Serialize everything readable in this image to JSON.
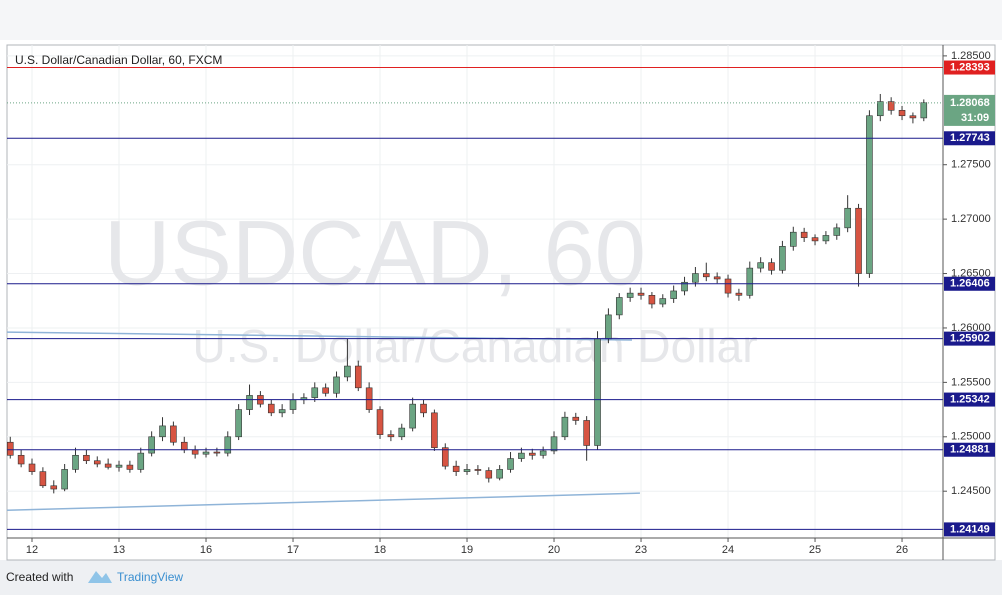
{
  "chart_data": {
    "type": "candlestick",
    "title": "U.S. Dollar/Canadian Dollar, 60, FXCM",
    "watermark": "USDCAD, 60",
    "watermark_subtitle": "U.S. Dollar/Canadian Dollar",
    "footer": {
      "created": "Created with",
      "brand": "TradingView"
    },
    "xlim": [
      -6.9,
      251.3
    ],
    "ylim": [
      1.2407,
      1.286
    ],
    "xticks": [
      {
        "value": 0,
        "label": "12"
      },
      {
        "value": 24,
        "label": "13"
      },
      {
        "value": 48,
        "label": "16"
      },
      {
        "value": 72,
        "label": "17"
      },
      {
        "value": 96,
        "label": "18"
      },
      {
        "value": 120,
        "label": "19"
      },
      {
        "value": 144,
        "label": "20"
      },
      {
        "value": 168,
        "label": "23"
      },
      {
        "value": 192,
        "label": "24"
      },
      {
        "value": 216,
        "label": "25"
      },
      {
        "value": 240,
        "label": "26"
      }
    ],
    "yticks": [
      {
        "value": 1.245,
        "label": "1.24500"
      },
      {
        "value": 1.25,
        "label": "1.25000"
      },
      {
        "value": 1.255,
        "label": "1.25500"
      },
      {
        "value": 1.26,
        "label": "1.26000"
      },
      {
        "value": 1.265,
        "label": "1.26500"
      },
      {
        "value": 1.27,
        "label": "1.27000"
      },
      {
        "value": 1.275,
        "label": "1.27500"
      },
      {
        "value": 1.285,
        "label": "1.28500"
      }
    ],
    "grid": true,
    "up_color": "#6ba583",
    "down_color": "#d75442",
    "x": [
      -6,
      -3,
      0,
      3,
      6,
      9,
      12,
      15,
      18,
      21,
      24,
      27,
      30,
      33,
      36,
      39,
      42,
      45,
      48,
      51,
      54,
      57,
      60,
      63,
      66,
      69,
      72,
      75,
      78,
      81,
      84,
      87,
      90,
      93,
      96,
      99,
      102,
      105,
      108,
      111,
      114,
      117,
      120,
      123,
      126,
      129,
      132,
      135,
      138,
      141,
      144,
      147,
      150,
      153,
      156,
      159,
      162,
      165,
      168,
      171,
      174,
      177,
      180,
      183,
      186,
      189,
      192,
      195,
      198,
      201,
      204,
      207,
      210,
      213,
      216,
      219,
      222,
      225,
      228,
      231,
      234,
      237,
      240,
      243,
      246
    ],
    "open": [
      1.2495,
      1.2483,
      1.2475,
      1.2468,
      1.2455,
      1.2452,
      1.247,
      1.2483,
      1.2478,
      1.2475,
      1.2472,
      1.2474,
      1.247,
      1.2485,
      1.25,
      1.251,
      1.2495,
      1.2488,
      1.2484,
      1.2486,
      1.2485,
      1.25,
      1.2525,
      1.2538,
      1.253,
      1.2522,
      1.2525,
      1.2534,
      1.2536,
      1.2545,
      1.254,
      1.2555,
      1.2565,
      1.2545,
      1.2525,
      1.2502,
      1.25,
      1.2508,
      1.253,
      1.2522,
      1.249,
      1.2473,
      1.2468,
      1.247,
      1.2469,
      1.2462,
      1.247,
      1.248,
      1.2485,
      1.2483,
      1.2487,
      1.25,
      1.2518,
      1.2515,
      1.2492,
      1.259,
      1.2612,
      1.2628,
      1.2632,
      1.263,
      1.2622,
      1.2627,
      1.2634,
      1.2642,
      1.265,
      1.2647,
      1.2645,
      1.2632,
      1.263,
      1.2655,
      1.266,
      1.2653,
      1.2675,
      1.2688,
      1.2683,
      1.268,
      1.2685,
      1.2692,
      1.271,
      1.265,
      1.2795,
      1.2808,
      1.28,
      1.2795,
      1.2793
    ],
    "high": [
      1.25,
      1.2488,
      1.248,
      1.2472,
      1.246,
      1.2475,
      1.249,
      1.2488,
      1.2482,
      1.248,
      1.2478,
      1.2478,
      1.249,
      1.2505,
      1.2518,
      1.2514,
      1.25,
      1.2492,
      1.249,
      1.249,
      1.2505,
      1.253,
      1.2548,
      1.2542,
      1.2534,
      1.253,
      1.254,
      1.254,
      1.255,
      1.2549,
      1.256,
      1.259,
      1.257,
      1.255,
      1.2528,
      1.2506,
      1.2512,
      1.2536,
      1.2534,
      1.2525,
      1.2494,
      1.2478,
      1.2475,
      1.2474,
      1.2472,
      1.2474,
      1.2486,
      1.249,
      1.2489,
      1.2491,
      1.2505,
      1.2523,
      1.2522,
      1.2519,
      1.2597,
      1.2618,
      1.2632,
      1.2637,
      1.2637,
      1.2633,
      1.2631,
      1.2639,
      1.2647,
      1.2656,
      1.266,
      1.2651,
      1.2649,
      1.2636,
      1.2661,
      1.2665,
      1.2664,
      1.268,
      1.2693,
      1.2692,
      1.2686,
      1.2689,
      1.2696,
      1.2722,
      1.2714,
      1.28,
      1.2815,
      1.2812,
      1.2804,
      1.2798,
      1.281
    ],
    "low": [
      1.248,
      1.2472,
      1.2465,
      1.2453,
      1.2448,
      1.245,
      1.2467,
      1.2475,
      1.2472,
      1.247,
      1.2468,
      1.2467,
      1.2467,
      1.2482,
      1.2496,
      1.2492,
      1.2485,
      1.248,
      1.2481,
      1.2482,
      1.2482,
      1.2497,
      1.252,
      1.2527,
      1.2519,
      1.2518,
      1.2521,
      1.253,
      1.2532,
      1.2537,
      1.2536,
      1.2551,
      1.2542,
      1.2522,
      1.2498,
      1.2496,
      1.2497,
      1.2505,
      1.2518,
      1.2487,
      1.247,
      1.2464,
      1.2465,
      1.2465,
      1.2458,
      1.246,
      1.2467,
      1.2477,
      1.2479,
      1.248,
      1.2484,
      1.2497,
      1.2511,
      1.2478,
      1.2488,
      1.2586,
      1.2608,
      1.2624,
      1.2626,
      1.2618,
      1.2619,
      1.2623,
      1.263,
      1.2638,
      1.2643,
      1.2641,
      1.2628,
      1.2625,
      1.2627,
      1.2651,
      1.2649,
      1.265,
      1.2671,
      1.2679,
      1.2676,
      1.2677,
      1.2681,
      1.2688,
      1.2638,
      1.2646,
      1.279,
      1.2796,
      1.2791,
      1.2788,
      1.279
    ],
    "close": [
      1.2483,
      1.2475,
      1.2468,
      1.2455,
      1.2452,
      1.247,
      1.2483,
      1.2478,
      1.2475,
      1.2472,
      1.2474,
      1.247,
      1.2485,
      1.25,
      1.251,
      1.2495,
      1.2488,
      1.2484,
      1.2486,
      1.2485,
      1.25,
      1.2525,
      1.2538,
      1.253,
      1.2522,
      1.2525,
      1.2534,
      1.2536,
      1.2545,
      1.254,
      1.2555,
      1.2565,
      1.2545,
      1.2525,
      1.2502,
      1.25,
      1.2508,
      1.253,
      1.2522,
      1.249,
      1.2473,
      1.2468,
      1.247,
      1.2469,
      1.2462,
      1.247,
      1.248,
      1.2485,
      1.2483,
      1.2487,
      1.25,
      1.2518,
      1.2515,
      1.2492,
      1.259,
      1.2612,
      1.2628,
      1.2632,
      1.263,
      1.2622,
      1.2627,
      1.2634,
      1.2642,
      1.265,
      1.2647,
      1.2645,
      1.2632,
      1.263,
      1.2655,
      1.266,
      1.2653,
      1.2675,
      1.2688,
      1.2683,
      1.268,
      1.2685,
      1.2692,
      1.271,
      1.265,
      1.2795,
      1.2808,
      1.28,
      1.2795,
      1.2793,
      1.2807
    ],
    "levels": [
      {
        "value": 1.28393,
        "color": "#e02020"
      },
      {
        "value": 1.27743,
        "color": "#1a1a8c"
      },
      {
        "value": 1.26406,
        "color": "#1a1a8c"
      },
      {
        "value": 1.25902,
        "color": "#1a1a8c"
      },
      {
        "value": 1.25342,
        "color": "#1a1a8c"
      },
      {
        "value": 1.24881,
        "color": "#1a1a8c"
      },
      {
        "value": 1.24149,
        "color": "#1a1a8c"
      }
    ],
    "current_price": {
      "value": 1.28068,
      "countdown": "31:09",
      "color": "#6ba583"
    },
    "trendlines": [
      {
        "x": [
          -6.9,
          165.5
        ],
        "y": [
          1.25962,
          1.25889
        ],
        "color": "#8fb4d8"
      },
      {
        "x": [
          -6.9,
          167.7
        ],
        "y": [
          1.24325,
          1.24482
        ],
        "color": "#8fb4d8"
      }
    ]
  }
}
